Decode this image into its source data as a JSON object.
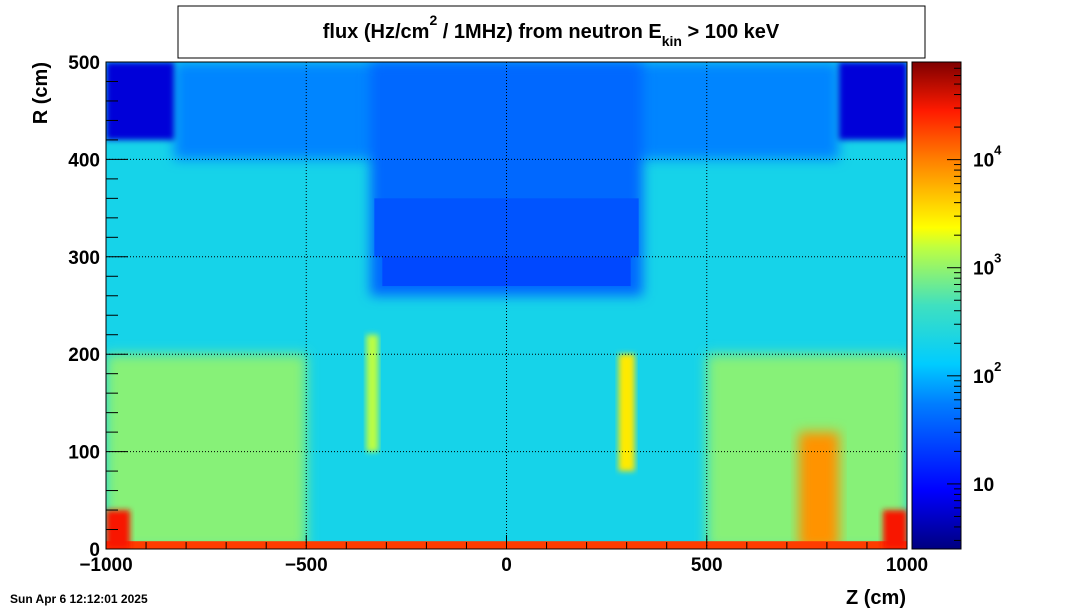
{
  "chart_data": {
    "type": "heatmap",
    "title": {
      "prefix": "flux (Hz/cm",
      "sup": "2",
      "middle": " / 1MHz) from   neutron  E",
      "sub": "kin",
      "suffix": " > 100 keV"
    },
    "xlabel": "Z (cm)",
    "ylabel": "R (cm)",
    "xlim": [
      -1000,
      1000
    ],
    "ylim": [
      0,
      500
    ],
    "x_ticks": [
      {
        "value": -1000,
        "label": "−1000"
      },
      {
        "value": -500,
        "label": "−500"
      },
      {
        "value": 0,
        "label": "0"
      },
      {
        "value": 500,
        "label": "500"
      },
      {
        "value": 1000,
        "label": "1000"
      }
    ],
    "y_ticks": [
      {
        "value": 0,
        "label": "0"
      },
      {
        "value": 100,
        "label": "100"
      },
      {
        "value": 200,
        "label": "200"
      },
      {
        "value": 300,
        "label": "300"
      },
      {
        "value": 400,
        "label": "400"
      },
      {
        "value": 500,
        "label": "500"
      }
    ],
    "grid": true,
    "colorbar": {
      "scale": "log",
      "range": [
        2.5,
        80000
      ],
      "ticks": [
        {
          "value": 10,
          "base": "10",
          "exp": ""
        },
        {
          "value": 100,
          "base": "10",
          "exp": "2"
        },
        {
          "value": 1000,
          "base": "10",
          "exp": "3"
        },
        {
          "value": 10000,
          "base": "10",
          "exp": "4"
        }
      ]
    },
    "regions": [
      {
        "name": "background",
        "z": [
          -1000,
          1000
        ],
        "r": [
          0,
          500
        ],
        "flux": 200
      },
      {
        "name": "upper-band",
        "z": [
          -830,
          830
        ],
        "r": [
          400,
          500
        ],
        "flux": 60
      },
      {
        "name": "lower-field-left",
        "z": [
          -1000,
          -500
        ],
        "r": [
          0,
          200
        ],
        "flux": 900
      },
      {
        "name": "lower-field-right",
        "z": [
          500,
          1000
        ],
        "r": [
          0,
          200
        ],
        "flux": 900
      },
      {
        "name": "central-shielded-block",
        "z": [
          -340,
          340
        ],
        "r": [
          260,
          500
        ],
        "flux": 40
      },
      {
        "name": "block-layer-top",
        "z": [
          -330,
          330
        ],
        "r": [
          300,
          360
        ],
        "flux": 30
      },
      {
        "name": "block-layer-bottom",
        "z": [
          -310,
          310
        ],
        "r": [
          270,
          300
        ],
        "flux": 25
      },
      {
        "name": "corner-top-left",
        "z": [
          -1000,
          -830
        ],
        "r": [
          420,
          500
        ],
        "flux": 6
      },
      {
        "name": "corner-top-right",
        "z": [
          830,
          1000
        ],
        "r": [
          420,
          500
        ],
        "flux": 6
      },
      {
        "name": "hotspot-right",
        "z": [
          730,
          830
        ],
        "r": [
          0,
          120
        ],
        "flux": 8000
      },
      {
        "name": "ridge-left",
        "z": [
          -350,
          -320
        ],
        "r": [
          100,
          220
        ],
        "flux": 1500
      },
      {
        "name": "ridge-right",
        "z": [
          280,
          320
        ],
        "r": [
          80,
          200
        ],
        "flux": 3000
      },
      {
        "name": "beamline-strip",
        "z": [
          -1000,
          1000
        ],
        "r": [
          0,
          8
        ],
        "flux": 20000
      },
      {
        "name": "corner-bottom-left",
        "z": [
          -1000,
          -940
        ],
        "r": [
          0,
          40
        ],
        "flux": 30000
      },
      {
        "name": "corner-bottom-right",
        "z": [
          940,
          1000
        ],
        "r": [
          0,
          40
        ],
        "flux": 30000
      }
    ]
  },
  "footer": {
    "timestamp": "Sun Apr  6 12:12:01 2025"
  }
}
